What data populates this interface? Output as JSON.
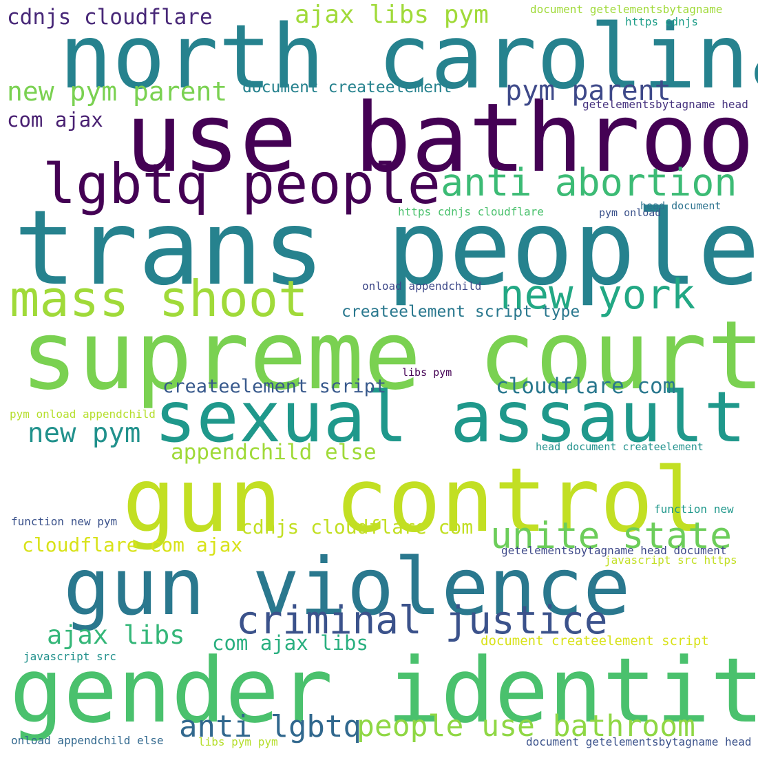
{
  "words": [
    {
      "text": "north carolina",
      "color": "#26828e"
    },
    {
      "text": "use bathroom",
      "color": "#440154"
    },
    {
      "text": "trans people",
      "color": "#26828e"
    },
    {
      "text": "supreme court",
      "color": "#7ad151"
    },
    {
      "text": "sexual assault",
      "color": "#1f988b"
    },
    {
      "text": "gun control",
      "color": "#c2df23"
    },
    {
      "text": "gun violence",
      "color": "#2a788e"
    },
    {
      "text": "gender identity",
      "color": "#4ac16d"
    },
    {
      "text": "lgbtq people",
      "color": "#440154"
    },
    {
      "text": "anti abortion",
      "color": "#3cbb75"
    },
    {
      "text": "mass shoot",
      "color": "#a0da39"
    },
    {
      "text": "new york",
      "color": "#22a884"
    },
    {
      "text": "unite state",
      "color": "#6ccd5a"
    },
    {
      "text": "criminal justice",
      "color": "#3b528b"
    },
    {
      "text": "people use bathroom",
      "color": "#8fd744"
    },
    {
      "text": "anti lgbtq",
      "color": "#31688e"
    },
    {
      "text": "pym parent",
      "color": "#3e4989"
    },
    {
      "text": "new pym parent",
      "color": "#7ad151"
    },
    {
      "text": "ajax libs pym",
      "color": "#a0da39"
    },
    {
      "text": "cdnjs cloudflare",
      "color": "#482878"
    },
    {
      "text": "new pym",
      "color": "#21918c"
    },
    {
      "text": "ajax libs",
      "color": "#35b779"
    },
    {
      "text": "com ajax libs",
      "color": "#29af7f"
    },
    {
      "text": "cloudflare com",
      "color": "#2a788e"
    },
    {
      "text": "createelement script",
      "color": "#38598c"
    },
    {
      "text": "appendchild else",
      "color": "#a0da39"
    },
    {
      "text": "cdnjs cloudflare com",
      "color": "#c2df23"
    },
    {
      "text": "cloudflare com ajax",
      "color": "#d8e219"
    },
    {
      "text": "com ajax",
      "color": "#481f71"
    },
    {
      "text": "document createelement",
      "color": "#26828e"
    },
    {
      "text": "createelement script type",
      "color": "#2a788e"
    },
    {
      "text": "document createelement script",
      "color": "#d8e219"
    },
    {
      "text": "document getelementsbytagname",
      "color": "#a0da39"
    },
    {
      "text": "https cdnjs",
      "color": "#1f9e89"
    },
    {
      "text": "getelementsbytagname head",
      "color": "#46327e"
    },
    {
      "text": "https cdnjs cloudflare",
      "color": "#4ac16d"
    },
    {
      "text": "head document",
      "color": "#2c728e"
    },
    {
      "text": "pym onload",
      "color": "#3b528b"
    },
    {
      "text": "onload appendchild",
      "color": "#3e4989"
    },
    {
      "text": "libs pym",
      "color": "#440154"
    },
    {
      "text": "pym onload appendchild",
      "color": "#b5de2b"
    },
    {
      "text": "head document createelement",
      "color": "#21918c"
    },
    {
      "text": "function new pym",
      "color": "#3b528b"
    },
    {
      "text": "function new",
      "color": "#1f988b"
    },
    {
      "text": "getelementsbytagname head document",
      "color": "#3e4989"
    },
    {
      "text": "javascript src https",
      "color": "#c2df23"
    },
    {
      "text": "javascript src",
      "color": "#21918c"
    },
    {
      "text": "onload appendchild else",
      "color": "#31688e"
    },
    {
      "text": "libs pym pym",
      "color": "#b5de2b"
    },
    {
      "text": "document getelementsbytagname head",
      "color": "#3b528b"
    }
  ]
}
